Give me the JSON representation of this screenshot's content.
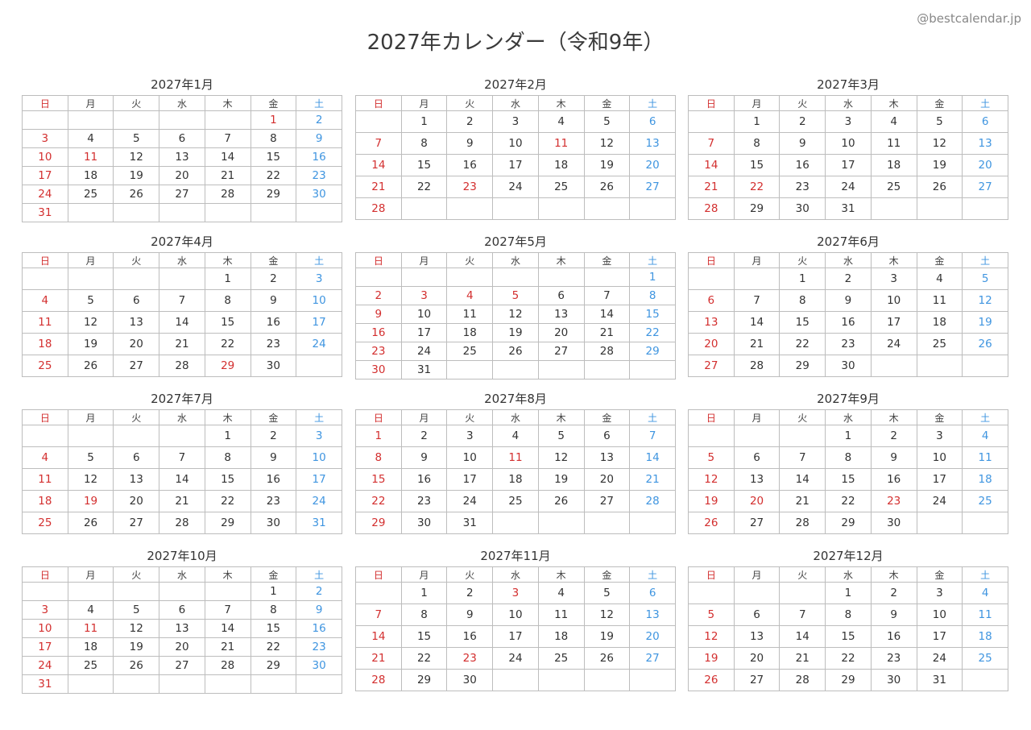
{
  "title": "2027年カレンダー（令和9年）",
  "credit": "@bestcalendar.jp",
  "weekdays": [
    "日",
    "月",
    "火",
    "水",
    "木",
    "金",
    "土"
  ],
  "colors": {
    "sunday_holiday": "#d32f2f",
    "saturday": "#3f95e0",
    "text": "#333333",
    "border": "#bdbdbd"
  },
  "months": [
    {
      "label": "2027年1月",
      "holidays": [
        1,
        11
      ],
      "weeks": [
        [
          0,
          0,
          0,
          0,
          0,
          1,
          2
        ],
        [
          3,
          4,
          5,
          6,
          7,
          8,
          9
        ],
        [
          10,
          11,
          12,
          13,
          14,
          15,
          16
        ],
        [
          17,
          18,
          19,
          20,
          21,
          22,
          23
        ],
        [
          24,
          25,
          26,
          27,
          28,
          29,
          30
        ],
        [
          31,
          0,
          0,
          0,
          0,
          0,
          0
        ]
      ]
    },
    {
      "label": "2027年2月",
      "holidays": [
        11,
        23
      ],
      "weeks": [
        [
          0,
          1,
          2,
          3,
          4,
          5,
          6
        ],
        [
          7,
          8,
          9,
          10,
          11,
          12,
          13
        ],
        [
          14,
          15,
          16,
          17,
          18,
          19,
          20
        ],
        [
          21,
          22,
          23,
          24,
          25,
          26,
          27
        ],
        [
          28,
          0,
          0,
          0,
          0,
          0,
          0
        ]
      ]
    },
    {
      "label": "2027年3月",
      "holidays": [
        22
      ],
      "weeks": [
        [
          0,
          1,
          2,
          3,
          4,
          5,
          6
        ],
        [
          7,
          8,
          9,
          10,
          11,
          12,
          13
        ],
        [
          14,
          15,
          16,
          17,
          18,
          19,
          20
        ],
        [
          21,
          22,
          23,
          24,
          25,
          26,
          27
        ],
        [
          28,
          29,
          30,
          31,
          0,
          0,
          0
        ]
      ]
    },
    {
      "label": "2027年4月",
      "holidays": [
        29
      ],
      "weeks": [
        [
          0,
          0,
          0,
          0,
          1,
          2,
          3
        ],
        [
          4,
          5,
          6,
          7,
          8,
          9,
          10
        ],
        [
          11,
          12,
          13,
          14,
          15,
          16,
          17
        ],
        [
          18,
          19,
          20,
          21,
          22,
          23,
          24
        ],
        [
          25,
          26,
          27,
          28,
          29,
          30,
          0
        ]
      ]
    },
    {
      "label": "2027年5月",
      "holidays": [
        3,
        4,
        5
      ],
      "weeks": [
        [
          0,
          0,
          0,
          0,
          0,
          0,
          1
        ],
        [
          2,
          3,
          4,
          5,
          6,
          7,
          8
        ],
        [
          9,
          10,
          11,
          12,
          13,
          14,
          15
        ],
        [
          16,
          17,
          18,
          19,
          20,
          21,
          22
        ],
        [
          23,
          24,
          25,
          26,
          27,
          28,
          29
        ],
        [
          30,
          31,
          0,
          0,
          0,
          0,
          0
        ]
      ]
    },
    {
      "label": "2027年6月",
      "holidays": [],
      "weeks": [
        [
          0,
          0,
          1,
          2,
          3,
          4,
          5
        ],
        [
          6,
          7,
          8,
          9,
          10,
          11,
          12
        ],
        [
          13,
          14,
          15,
          16,
          17,
          18,
          19
        ],
        [
          20,
          21,
          22,
          23,
          24,
          25,
          26
        ],
        [
          27,
          28,
          29,
          30,
          0,
          0,
          0
        ]
      ]
    },
    {
      "label": "2027年7月",
      "holidays": [
        19
      ],
      "weeks": [
        [
          0,
          0,
          0,
          0,
          1,
          2,
          3
        ],
        [
          4,
          5,
          6,
          7,
          8,
          9,
          10
        ],
        [
          11,
          12,
          13,
          14,
          15,
          16,
          17
        ],
        [
          18,
          19,
          20,
          21,
          22,
          23,
          24
        ],
        [
          25,
          26,
          27,
          28,
          29,
          30,
          31
        ]
      ]
    },
    {
      "label": "2027年8月",
      "holidays": [
        11
      ],
      "weeks": [
        [
          1,
          2,
          3,
          4,
          5,
          6,
          7
        ],
        [
          8,
          9,
          10,
          11,
          12,
          13,
          14
        ],
        [
          15,
          16,
          17,
          18,
          19,
          20,
          21
        ],
        [
          22,
          23,
          24,
          25,
          26,
          27,
          28
        ],
        [
          29,
          30,
          31,
          0,
          0,
          0,
          0
        ]
      ]
    },
    {
      "label": "2027年9月",
      "holidays": [
        20,
        23
      ],
      "weeks": [
        [
          0,
          0,
          0,
          1,
          2,
          3,
          4
        ],
        [
          5,
          6,
          7,
          8,
          9,
          10,
          11
        ],
        [
          12,
          13,
          14,
          15,
          16,
          17,
          18
        ],
        [
          19,
          20,
          21,
          22,
          23,
          24,
          25
        ],
        [
          26,
          27,
          28,
          29,
          30,
          0,
          0
        ]
      ]
    },
    {
      "label": "2027年10月",
      "holidays": [
        11
      ],
      "weeks": [
        [
          0,
          0,
          0,
          0,
          0,
          1,
          2
        ],
        [
          3,
          4,
          5,
          6,
          7,
          8,
          9
        ],
        [
          10,
          11,
          12,
          13,
          14,
          15,
          16
        ],
        [
          17,
          18,
          19,
          20,
          21,
          22,
          23
        ],
        [
          24,
          25,
          26,
          27,
          28,
          29,
          30
        ],
        [
          31,
          0,
          0,
          0,
          0,
          0,
          0
        ]
      ]
    },
    {
      "label": "2027年11月",
      "holidays": [
        3,
        23
      ],
      "weeks": [
        [
          0,
          1,
          2,
          3,
          4,
          5,
          6
        ],
        [
          7,
          8,
          9,
          10,
          11,
          12,
          13
        ],
        [
          14,
          15,
          16,
          17,
          18,
          19,
          20
        ],
        [
          21,
          22,
          23,
          24,
          25,
          26,
          27
        ],
        [
          28,
          29,
          30,
          0,
          0,
          0,
          0
        ]
      ]
    },
    {
      "label": "2027年12月",
      "holidays": [],
      "weeks": [
        [
          0,
          0,
          0,
          1,
          2,
          3,
          4
        ],
        [
          5,
          6,
          7,
          8,
          9,
          10,
          11
        ],
        [
          12,
          13,
          14,
          15,
          16,
          17,
          18
        ],
        [
          19,
          20,
          21,
          22,
          23,
          24,
          25
        ],
        [
          26,
          27,
          28,
          29,
          30,
          31,
          0
        ]
      ]
    }
  ]
}
